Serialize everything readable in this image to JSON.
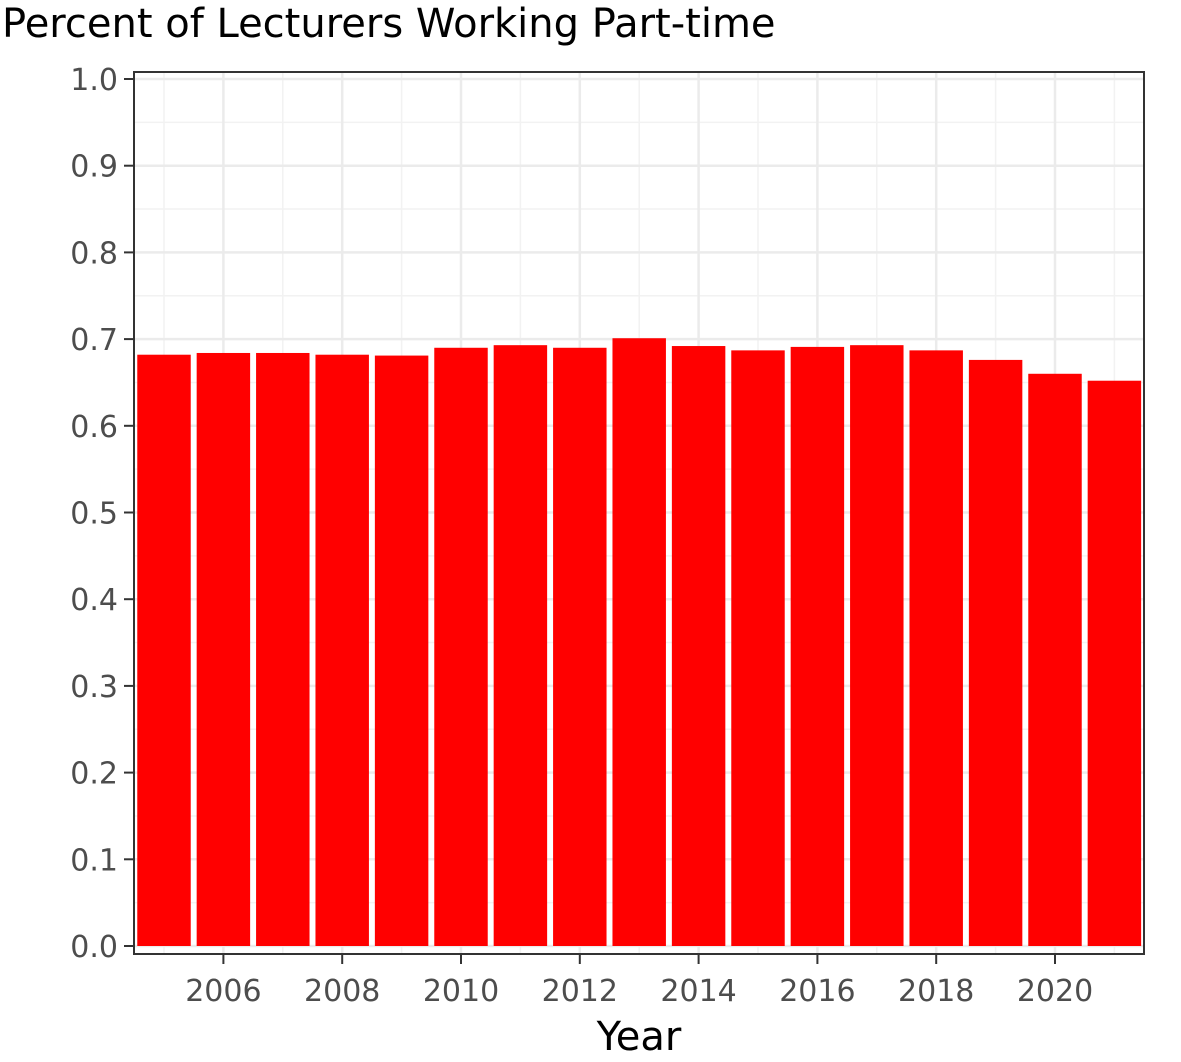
{
  "chart_data": {
    "type": "bar",
    "title": "Percent of Lecturers Working Part-time",
    "xlabel": "Year",
    "ylabel": "",
    "categories": [
      2005,
      2006,
      2007,
      2008,
      2009,
      2010,
      2011,
      2012,
      2013,
      2014,
      2015,
      2016,
      2017,
      2018,
      2019,
      2020,
      2021
    ],
    "values": [
      0.682,
      0.684,
      0.684,
      0.682,
      0.681,
      0.69,
      0.693,
      0.69,
      0.701,
      0.692,
      0.687,
      0.691,
      0.693,
      0.687,
      0.676,
      0.66,
      0.652
    ],
    "ylim": [
      0,
      1
    ],
    "yticks": [
      "0.0",
      "0.1",
      "0.2",
      "0.3",
      "0.4",
      "0.5",
      "0.6",
      "0.7",
      "0.8",
      "0.9",
      "1.0"
    ],
    "xticks": [
      "2006",
      "2008",
      "2010",
      "2012",
      "2014",
      "2016",
      "2018",
      "2020"
    ],
    "grid": true,
    "bar_color": "#ff0000"
  }
}
